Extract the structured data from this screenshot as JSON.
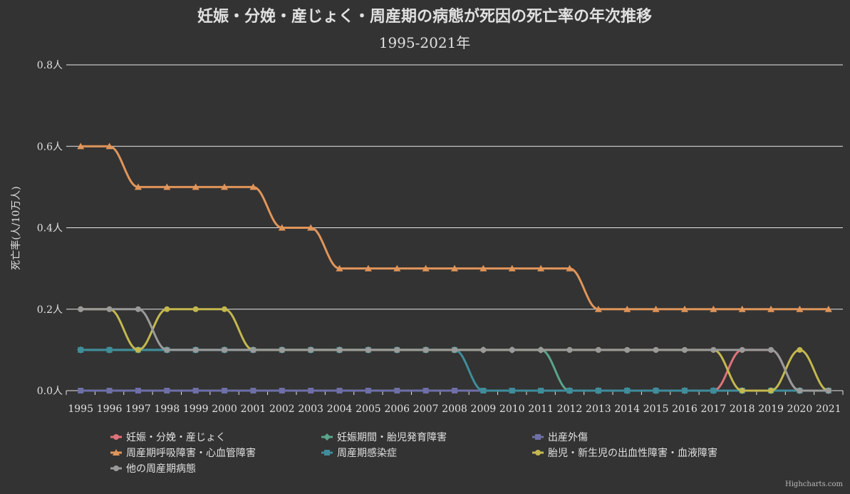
{
  "chart_data": {
    "type": "line",
    "title": "妊娠・分娩・産じょく・周産期の病態が死因の死亡率の年次推移",
    "subtitle": "1995-2021年",
    "ylabel": "死亡率(人/10万人)",
    "xlabel": "",
    "ylim": [
      0,
      0.8
    ],
    "yticks": [
      "0.0人",
      "0.2人",
      "0.4人",
      "0.6人",
      "0.8人"
    ],
    "ytick_values": [
      0,
      0.2,
      0.4,
      0.6,
      0.8
    ],
    "grid": true,
    "legend_position": "bottom",
    "categories": [
      "1995",
      "1996",
      "1997",
      "1998",
      "1999",
      "2000",
      "2001",
      "2002",
      "2003",
      "2004",
      "2005",
      "2006",
      "2007",
      "2008",
      "2009",
      "2010",
      "2011",
      "2012",
      "2013",
      "2014",
      "2015",
      "2016",
      "2017",
      "2018",
      "2019",
      "2020",
      "2021"
    ],
    "series": [
      {
        "name": "妊娠・分娩・産じょく",
        "color": "#e0727a",
        "marker": "circle",
        "values": [
          0,
          0,
          0,
          0,
          0,
          0,
          0,
          0,
          0,
          0,
          0,
          0,
          0,
          0,
          0,
          0,
          0,
          0,
          0,
          0,
          0,
          0,
          0,
          0.1,
          0.1,
          0,
          0
        ]
      },
      {
        "name": "妊娠期間・胎児発育障害",
        "color": "#5aa58a",
        "marker": "diamond",
        "values": [
          0.1,
          0.1,
          0.1,
          0.1,
          0.1,
          0.1,
          0.1,
          0.1,
          0.1,
          0.1,
          0.1,
          0.1,
          0.1,
          0.1,
          0.1,
          0.1,
          0.1,
          0,
          0,
          0,
          0,
          0,
          0,
          0,
          0,
          0,
          0
        ]
      },
      {
        "name": "出産外傷",
        "color": "#6f6fa8",
        "marker": "square",
        "values": [
          0,
          0,
          0,
          0,
          0,
          0,
          0,
          0,
          0,
          0,
          0,
          0,
          0,
          0,
          0,
          0,
          0,
          0,
          0,
          0,
          0,
          0,
          0,
          0,
          0,
          0,
          0
        ]
      },
      {
        "name": "周産期呼吸障害・心血管障害",
        "color": "#e0955a",
        "marker": "triangle",
        "values": [
          0.6,
          0.6,
          0.5,
          0.5,
          0.5,
          0.5,
          0.5,
          0.4,
          0.4,
          0.3,
          0.3,
          0.3,
          0.3,
          0.3,
          0.3,
          0.3,
          0.3,
          0.3,
          0.2,
          0.2,
          0.2,
          0.2,
          0.2,
          0.2,
          0.2,
          0.2,
          0.2
        ]
      },
      {
        "name": "周産期感染症",
        "color": "#3f8d9b",
        "marker": "square",
        "values": [
          0.1,
          0.1,
          0.1,
          0.1,
          0.1,
          0.1,
          0.1,
          0.1,
          0.1,
          0.1,
          0.1,
          0.1,
          0.1,
          0.1,
          0,
          0,
          0,
          0,
          0,
          0,
          0,
          0,
          0,
          0,
          0,
          0,
          0
        ]
      },
      {
        "name": "胎児・新生児の出血性障害・血液障害",
        "color": "#c4b84e",
        "marker": "circle",
        "values": [
          0.2,
          0.2,
          0.1,
          0.2,
          0.2,
          0.2,
          0.1,
          0.1,
          0.1,
          0.1,
          0.1,
          0.1,
          0.1,
          0.1,
          0.1,
          0.1,
          0.1,
          0.1,
          0.1,
          0.1,
          0.1,
          0.1,
          0.1,
          0,
          0,
          0.1,
          0
        ]
      },
      {
        "name": "他の周産期病態",
        "color": "#9a9a9a",
        "marker": "circle",
        "values": [
          0.2,
          0.2,
          0.2,
          0.1,
          0.1,
          0.1,
          0.1,
          0.1,
          0.1,
          0.1,
          0.1,
          0.1,
          0.1,
          0.1,
          0.1,
          0.1,
          0.1,
          0.1,
          0.1,
          0.1,
          0.1,
          0.1,
          0.1,
          0.1,
          0.1,
          0,
          0
        ]
      }
    ],
    "credits": "Highcharts.com"
  }
}
